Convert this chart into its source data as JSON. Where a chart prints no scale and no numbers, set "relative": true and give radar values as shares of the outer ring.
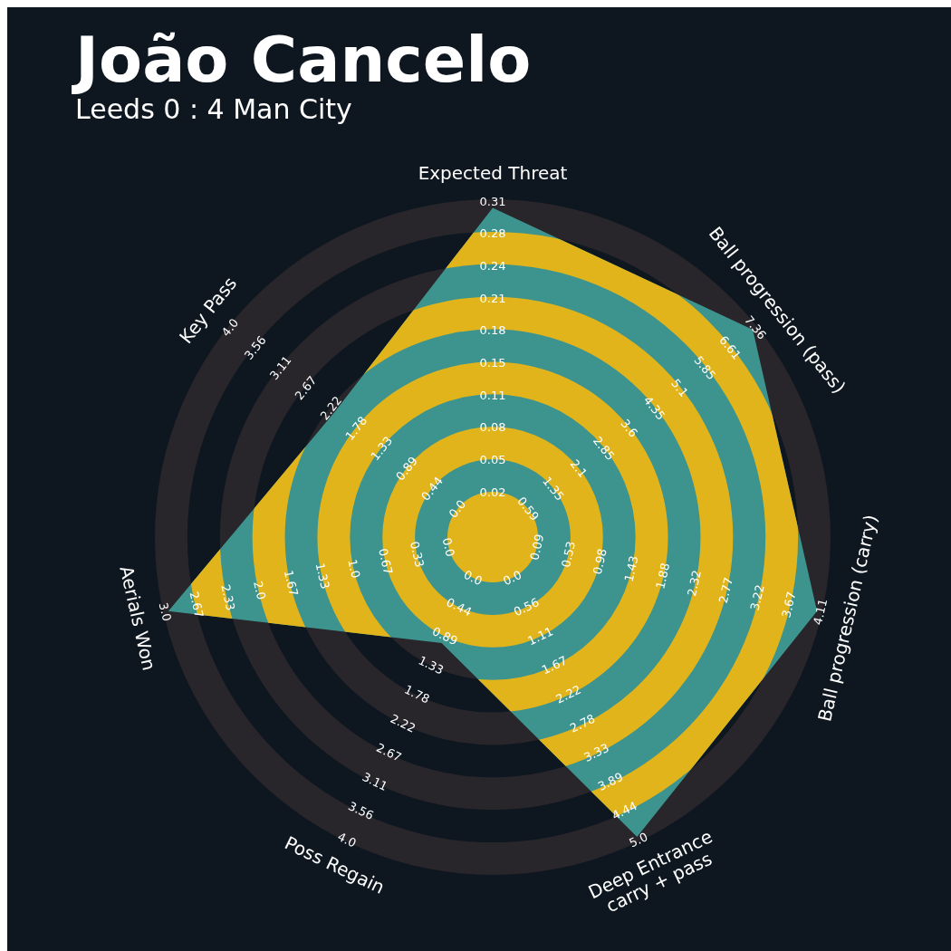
{
  "chart_data": {
    "type": "radar",
    "relative": true,
    "title": "João Cancelo",
    "subtitle": "Leeds 0 : 4 Man City",
    "categories": [
      "Expected Threat",
      "Ball progression (pass)",
      "Ball progression (carry)",
      "Deep Entrance\ncarry + pass",
      "Poss Regain",
      "Aerials Won",
      "Key Pass"
    ],
    "series": [
      {
        "color": "#3d948e",
        "values": [
          0.98,
          0.99,
          0.99,
          0.99,
          0.35,
          0.99,
          0.6
        ]
      }
    ],
    "annotations": [
      "0.02",
      "0.05",
      "0.08",
      "0.11",
      "0.15",
      "0.18",
      "0.21",
      "0.24",
      "0.28",
      "0.31",
      "0.59",
      "1.35",
      "2.1",
      "2.85",
      "3.6",
      "4.35",
      "5.1",
      "5.85",
      "6.61",
      "7.36",
      "0.09",
      "0.53",
      "0.98",
      "1.43",
      "1.88",
      "2.32",
      "2.77",
      "3.22",
      "3.67",
      "4.11",
      "0.0",
      "0.56",
      "1.11",
      "1.67",
      "2.22",
      "2.78",
      "3.33",
      "3.89",
      "4.44",
      "5.0",
      "0.0",
      "0.44",
      "0.89",
      "1.33",
      "1.78",
      "2.22",
      "2.67",
      "3.11",
      "3.56",
      "4.0",
      "0.0",
      "0.33",
      "0.67",
      "1.0",
      "1.33",
      "1.67",
      "2.0",
      "2.33",
      "2.67",
      "3.0",
      "0.0",
      "0.44",
      "0.89",
      "1.33",
      "1.78",
      "2.22",
      "2.67",
      "3.11",
      "3.56",
      "4.0"
    ]
  }
}
